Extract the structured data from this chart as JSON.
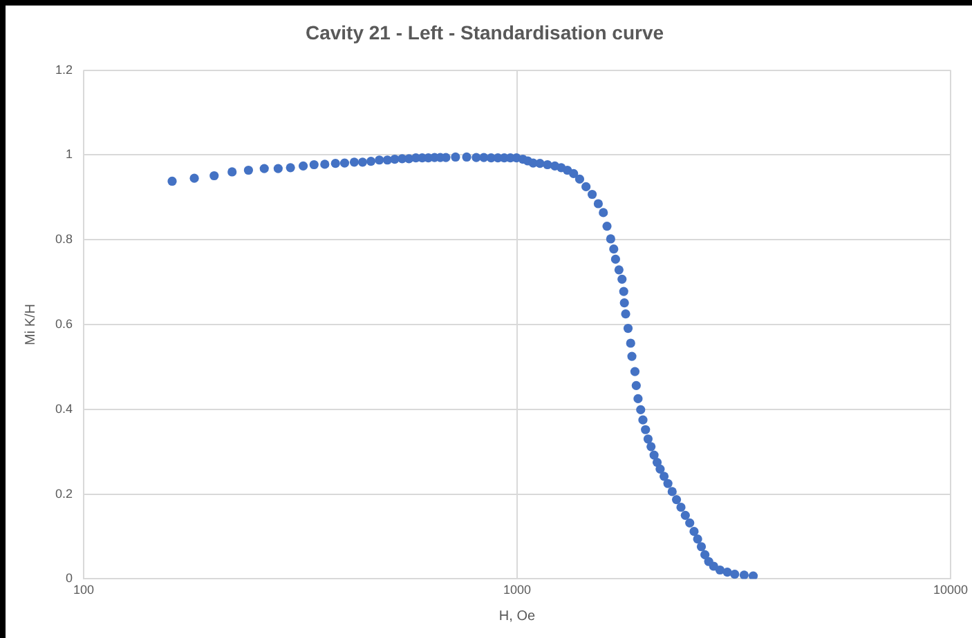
{
  "chart_data": {
    "type": "scatter",
    "title": "Cavity 21 - Left - Standardisation curve",
    "xlabel": "H, Oe",
    "ylabel": "Mi K/H",
    "log": "x",
    "grid": true,
    "legend": false,
    "marker": "circle",
    "xlim": [
      100,
      10000
    ],
    "xticks": [
      100,
      1000,
      10000
    ],
    "ylim": [
      0,
      1.2
    ],
    "yticks": [
      0,
      0.2,
      0.4,
      0.6,
      0.8,
      1,
      1.2
    ],
    "series": [
      {
        "color": "#4472c4",
        "x": [
          160,
          180,
          200,
          220,
          240,
          261,
          281,
          300,
          321,
          340,
          360,
          381,
          400,
          421,
          440,
          460,
          481,
          502,
          522,
          543,
          563,
          584,
          604,
          624,
          645,
          665,
          685,
          721,
          765,
          805,
          838,
          871,
          903,
          934,
          965,
          997,
          1031,
          1058,
          1089,
          1129,
          1175,
          1222,
          1264,
          1306,
          1350,
          1394,
          1442,
          1490,
          1539,
          1581,
          1612,
          1644,
          1671,
          1687,
          1718,
          1746,
          1762,
          1768,
          1780,
          1803,
          1828,
          1840,
          1870,
          1883,
          1901,
          1928,
          1951,
          1978,
          2005,
          2037,
          2070,
          2104,
          2138,
          2183,
          2228,
          2279,
          2332,
          2388,
          2444,
          2502,
          2560,
          2609,
          2661,
          2712,
          2767,
          2841,
          2938,
          3055,
          3177,
          3340,
          3505
        ],
        "values": [
          0.938,
          0.945,
          0.951,
          0.96,
          0.964,
          0.968,
          0.968,
          0.97,
          0.974,
          0.977,
          0.978,
          0.98,
          0.981,
          0.983,
          0.983,
          0.985,
          0.988,
          0.988,
          0.99,
          0.991,
          0.991,
          0.993,
          0.993,
          0.993,
          0.994,
          0.994,
          0.994,
          0.995,
          0.995,
          0.994,
          0.994,
          0.993,
          0.993,
          0.993,
          0.993,
          0.993,
          0.99,
          0.986,
          0.981,
          0.98,
          0.977,
          0.974,
          0.97,
          0.964,
          0.956,
          0.943,
          0.925,
          0.907,
          0.885,
          0.864,
          0.832,
          0.802,
          0.778,
          0.754,
          0.729,
          0.707,
          0.678,
          0.651,
          0.625,
          0.591,
          0.556,
          0.525,
          0.489,
          0.456,
          0.425,
          0.399,
          0.375,
          0.352,
          0.33,
          0.312,
          0.292,
          0.275,
          0.259,
          0.242,
          0.225,
          0.206,
          0.187,
          0.169,
          0.15,
          0.132,
          0.112,
          0.094,
          0.076,
          0.057,
          0.041,
          0.03,
          0.021,
          0.016,
          0.011,
          0.009,
          0.007
        ]
      }
    ]
  }
}
